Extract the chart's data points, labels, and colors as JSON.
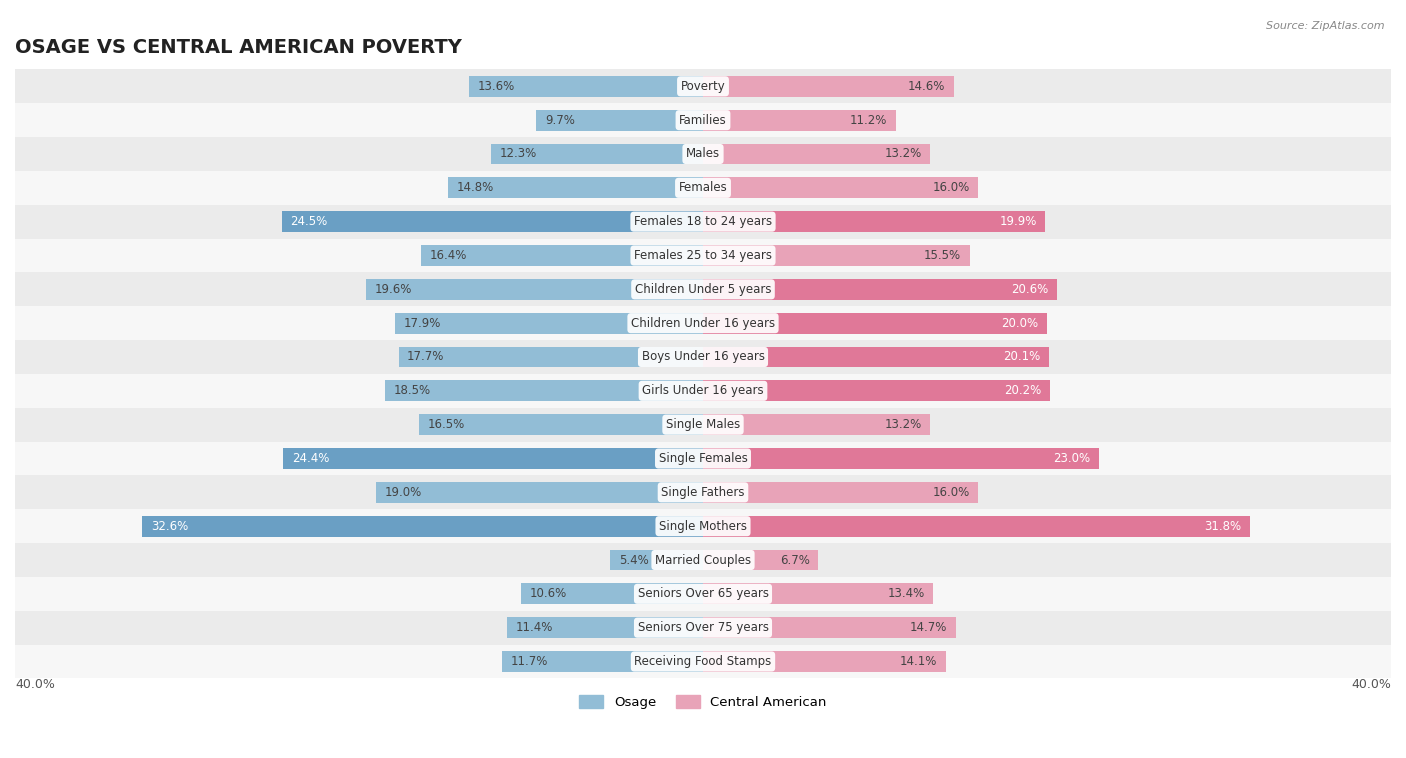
{
  "title": "OSAGE VS CENTRAL AMERICAN POVERTY",
  "source": "Source: ZipAtlas.com",
  "categories": [
    "Poverty",
    "Families",
    "Males",
    "Females",
    "Females 18 to 24 years",
    "Females 25 to 34 years",
    "Children Under 5 years",
    "Children Under 16 years",
    "Boys Under 16 years",
    "Girls Under 16 years",
    "Single Males",
    "Single Females",
    "Single Fathers",
    "Single Mothers",
    "Married Couples",
    "Seniors Over 65 years",
    "Seniors Over 75 years",
    "Receiving Food Stamps"
  ],
  "osage_values": [
    13.6,
    9.7,
    12.3,
    14.8,
    24.5,
    16.4,
    19.6,
    17.9,
    17.7,
    18.5,
    16.5,
    24.4,
    19.0,
    32.6,
    5.4,
    10.6,
    11.4,
    11.7
  ],
  "central_american_values": [
    14.6,
    11.2,
    13.2,
    16.0,
    19.9,
    15.5,
    20.6,
    20.0,
    20.1,
    20.2,
    13.2,
    23.0,
    16.0,
    31.8,
    6.7,
    13.4,
    14.7,
    14.1
  ],
  "osage_color_normal": "#92bdd6",
  "osage_color_highlight": "#6a9fc4",
  "central_color_normal": "#e8a3b8",
  "central_color_highlight": "#e07898",
  "row_bg_even": "#ebebeb",
  "row_bg_odd": "#f7f7f7",
  "bar_height": 0.62,
  "xlim": 40.0,
  "legend_osage": "Osage",
  "legend_central": "Central American",
  "title_fontsize": 14,
  "label_fontsize": 8.5,
  "value_fontsize": 8.5
}
